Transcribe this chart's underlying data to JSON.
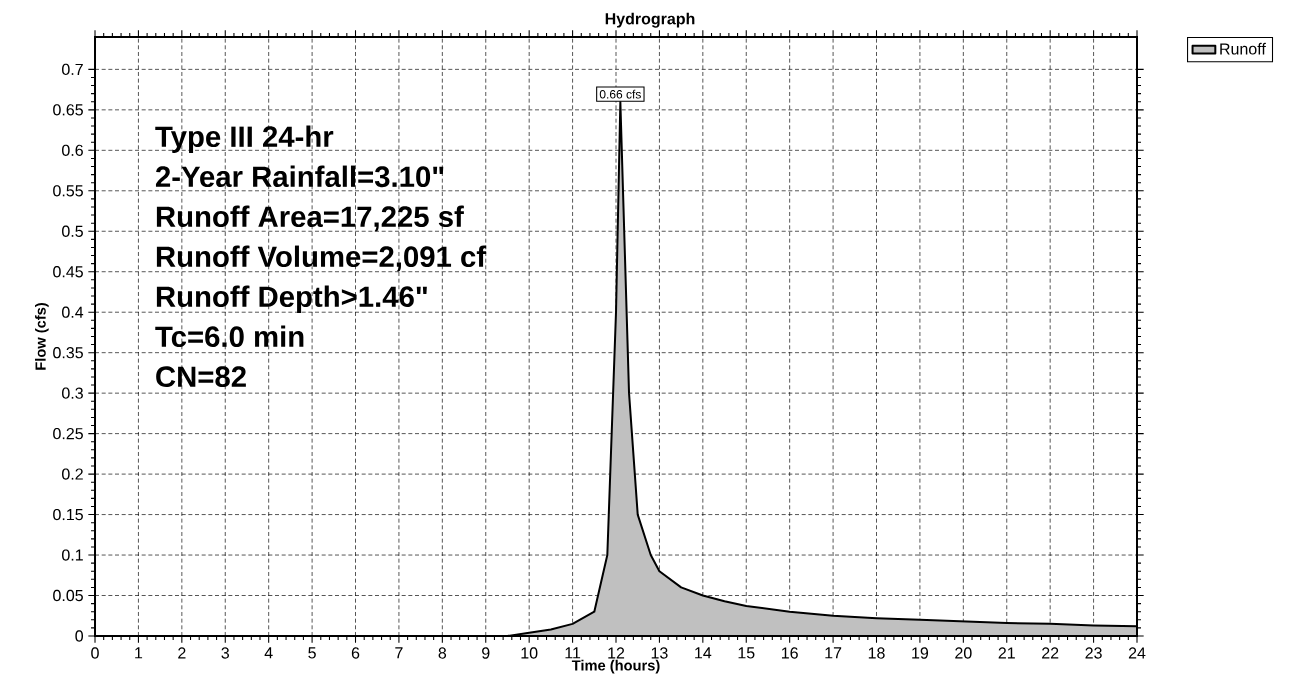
{
  "chart_data": {
    "type": "area",
    "title": "Hydrograph",
    "xlabel": "Time  (hours)",
    "ylabel": "Flow  (cfs)",
    "x": [
      0,
      9,
      9.5,
      10,
      10.5,
      11,
      11.5,
      11.8,
      12.0,
      12.1,
      12.3,
      12.5,
      12.8,
      13,
      13.5,
      14,
      14.5,
      15,
      16,
      17,
      18,
      19,
      20,
      21,
      22,
      23,
      24
    ],
    "series": [
      {
        "name": "Runoff",
        "color": "#c0c0c0",
        "values": [
          0,
          0,
          0,
          0.004,
          0.008,
          0.015,
          0.03,
          0.1,
          0.4,
          0.66,
          0.3,
          0.15,
          0.1,
          0.08,
          0.06,
          0.05,
          0.043,
          0.037,
          0.03,
          0.025,
          0.022,
          0.02,
          0.018,
          0.016,
          0.015,
          0.013,
          0.012
        ]
      }
    ],
    "xlim": [
      0,
      24
    ],
    "ylim": [
      0,
      0.74
    ],
    "xticks": [
      0,
      1,
      2,
      3,
      4,
      5,
      6,
      7,
      8,
      9,
      10,
      11,
      12,
      13,
      14,
      15,
      16,
      17,
      18,
      19,
      20,
      21,
      22,
      23,
      24
    ],
    "yticks": [
      0,
      0.05,
      0.1,
      0.15,
      0.2,
      0.25,
      0.3,
      0.35,
      0.4,
      0.45,
      0.5,
      0.55,
      0.6,
      0.65,
      0.7
    ],
    "grid": true,
    "legend": "top right",
    "annotations": [
      {
        "text": "0.66 cfs",
        "x": 12.1,
        "y": 0.66
      },
      "Type III 24-hr",
      "2-Year Rainfall=3.10\"",
      "Runoff Area=17,225 sf",
      "Runoff Volume=2,091 cf",
      "Runoff Depth>1.46\"",
      "Tc=6.0 min",
      "CN=82"
    ]
  }
}
